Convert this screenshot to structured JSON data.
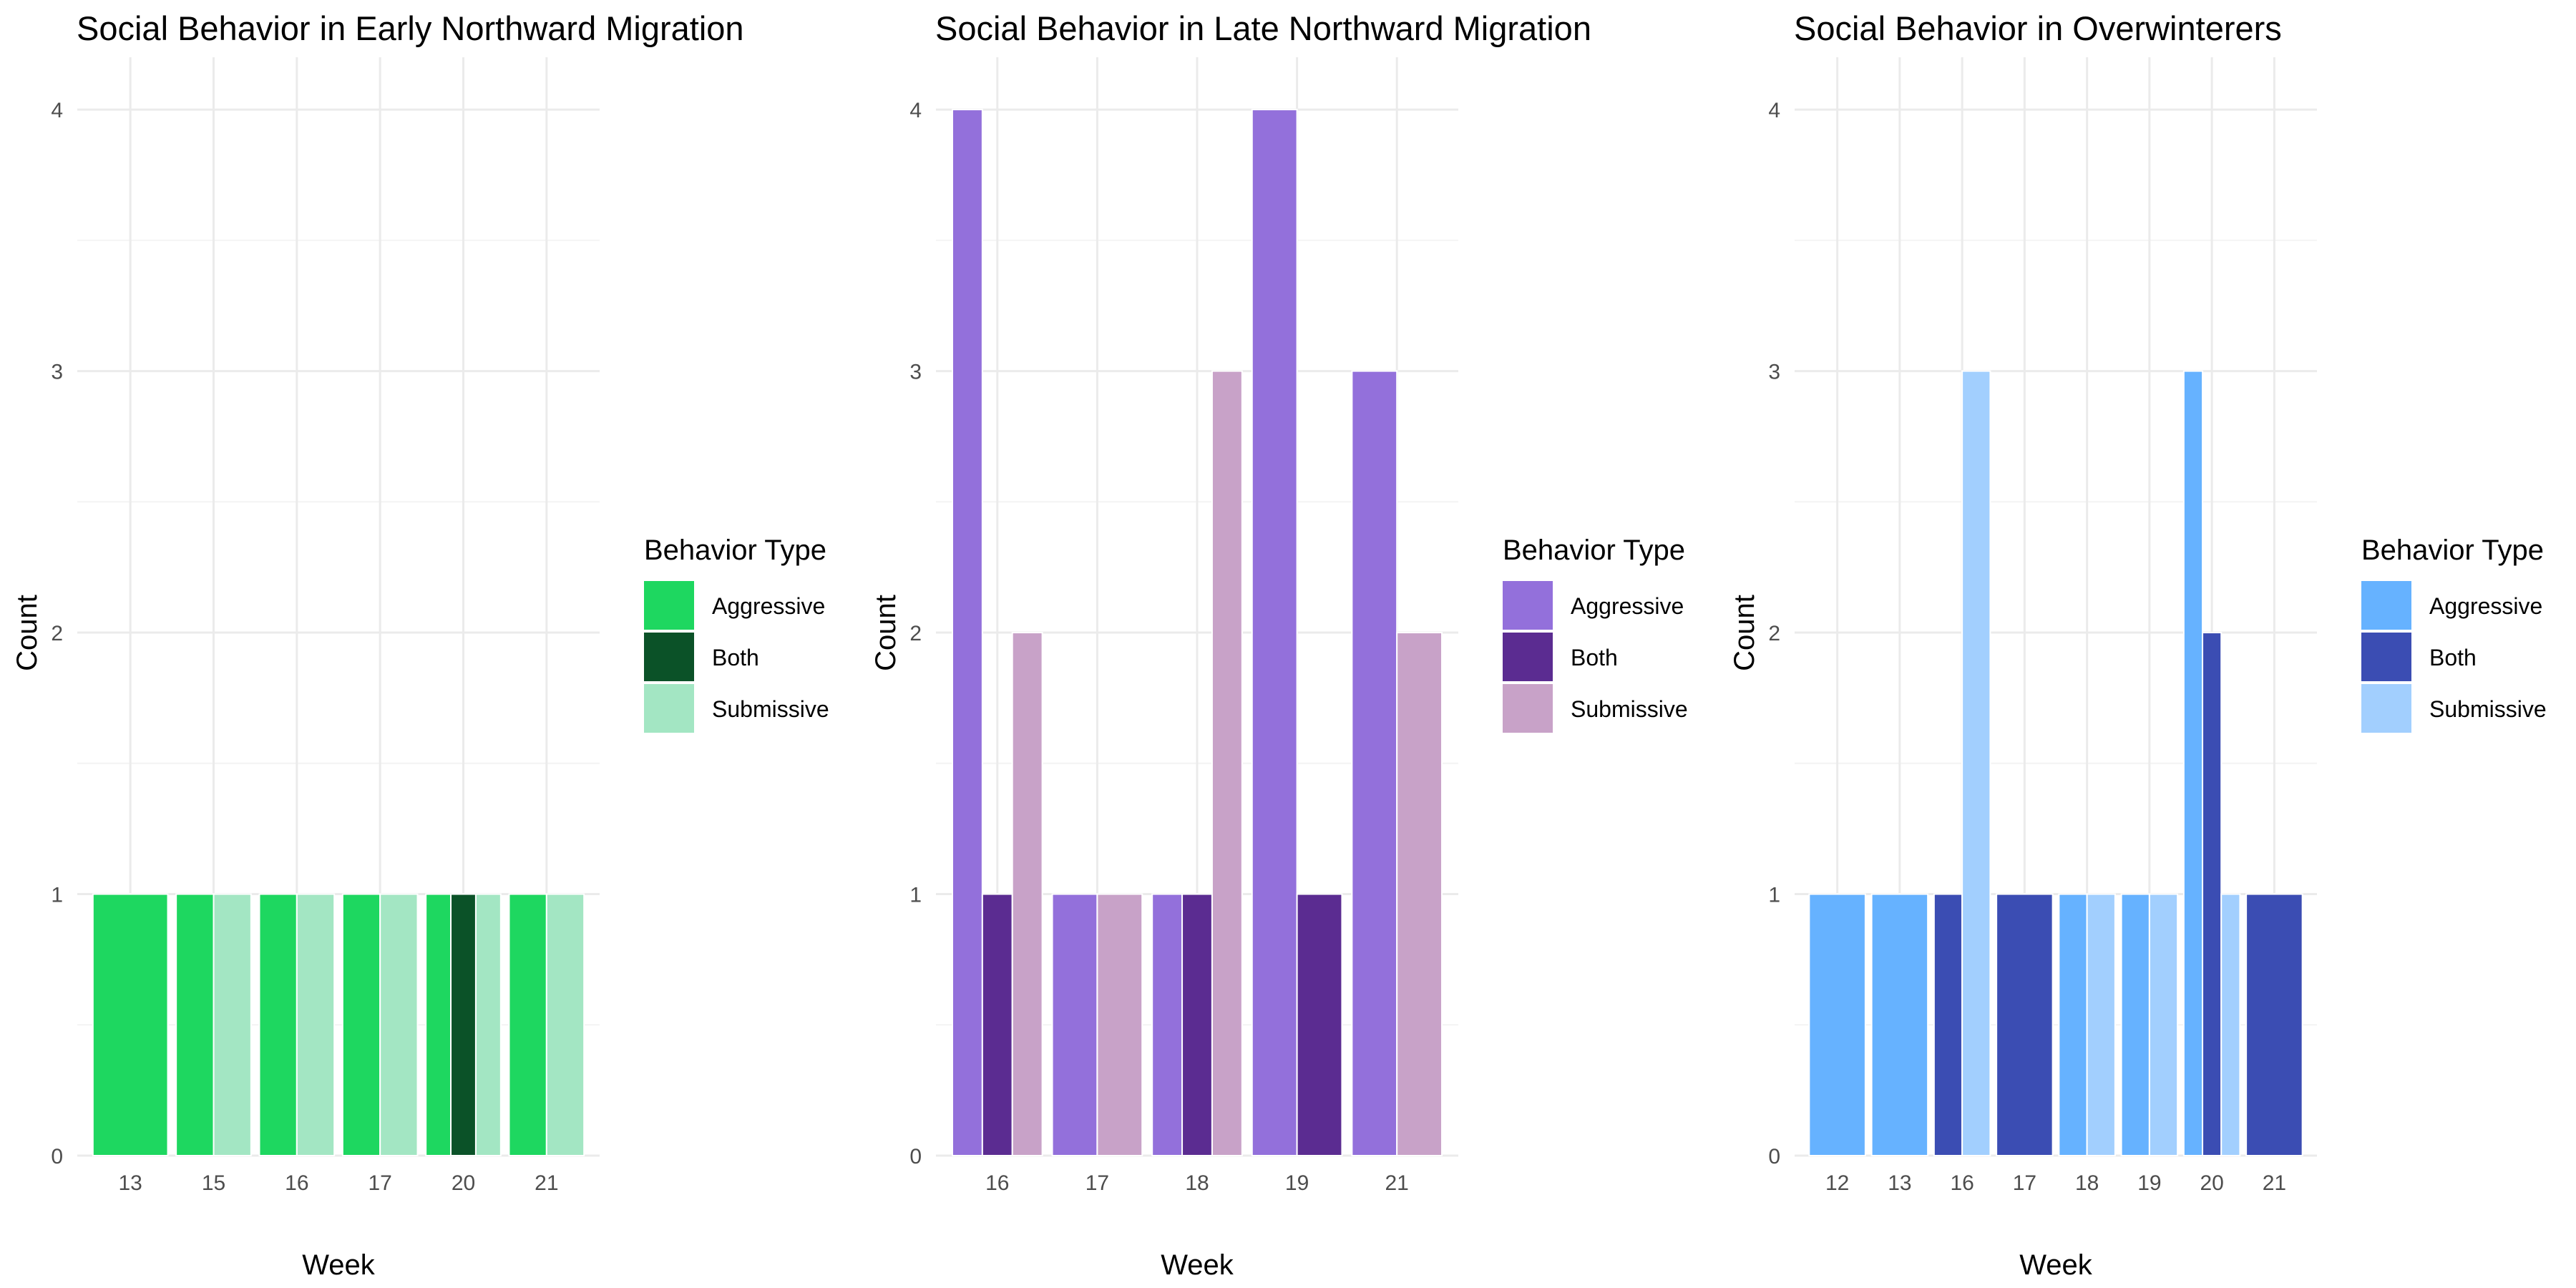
{
  "chart_data": [
    {
      "type": "bar",
      "title": "Social Behavior in Early Northward Migration",
      "xlabel": "Week",
      "ylabel": "Count",
      "ylim": [
        0,
        4.2
      ],
      "yticks": [
        "0",
        "1",
        "2",
        "3",
        "4"
      ],
      "grid": true,
      "legend_title": "Behavior Type",
      "legend_position": "right",
      "categories": [
        "13",
        "15",
        "16",
        "17",
        "20",
        "21"
      ],
      "series": [
        {
          "name": "Aggressive",
          "color": "#1ED760",
          "values": [
            1,
            1,
            1,
            1,
            1,
            1
          ]
        },
        {
          "name": "Both",
          "color": "#0B5228",
          "values": [
            0,
            0,
            0,
            0,
            1,
            0
          ]
        },
        {
          "name": "Submissive",
          "color": "#A3E6C3",
          "values": [
            0,
            1,
            1,
            1,
            1,
            1
          ]
        }
      ]
    },
    {
      "type": "bar",
      "title": "Social Behavior in Late Northward Migration",
      "xlabel": "Week",
      "ylabel": "Count",
      "ylim": [
        0,
        4.2
      ],
      "yticks": [
        "0",
        "1",
        "2",
        "3",
        "4"
      ],
      "grid": true,
      "legend_title": "Behavior Type",
      "legend_position": "right",
      "categories": [
        "16",
        "17",
        "18",
        "19",
        "21"
      ],
      "series": [
        {
          "name": "Aggressive",
          "color": "#9370DB",
          "values": [
            4,
            1,
            1,
            4,
            3
          ]
        },
        {
          "name": "Both",
          "color": "#5B2C91",
          "values": [
            1,
            0,
            1,
            1,
            0
          ]
        },
        {
          "name": "Submissive",
          "color": "#C8A2C8",
          "values": [
            2,
            1,
            3,
            0,
            2
          ]
        }
      ]
    },
    {
      "type": "bar",
      "title": "Social Behavior in Overwinterers",
      "xlabel": "Week",
      "ylabel": "Count",
      "ylim": [
        0,
        4.2
      ],
      "yticks": [
        "0",
        "1",
        "2",
        "3",
        "4"
      ],
      "grid": true,
      "legend_title": "Behavior Type",
      "legend_position": "right",
      "categories": [
        "12",
        "13",
        "16",
        "17",
        "18",
        "19",
        "20",
        "21"
      ],
      "series": [
        {
          "name": "Aggressive",
          "color": "#66B2FF",
          "values": [
            1,
            1,
            0,
            0,
            1,
            1,
            3,
            0
          ]
        },
        {
          "name": "Both",
          "color": "#3B4DB3",
          "values": [
            0,
            0,
            1,
            1,
            0,
            0,
            2,
            1
          ]
        },
        {
          "name": "Submissive",
          "color": "#A2CFFE",
          "values": [
            0,
            0,
            3,
            0,
            1,
            1,
            1,
            0
          ]
        }
      ]
    }
  ]
}
